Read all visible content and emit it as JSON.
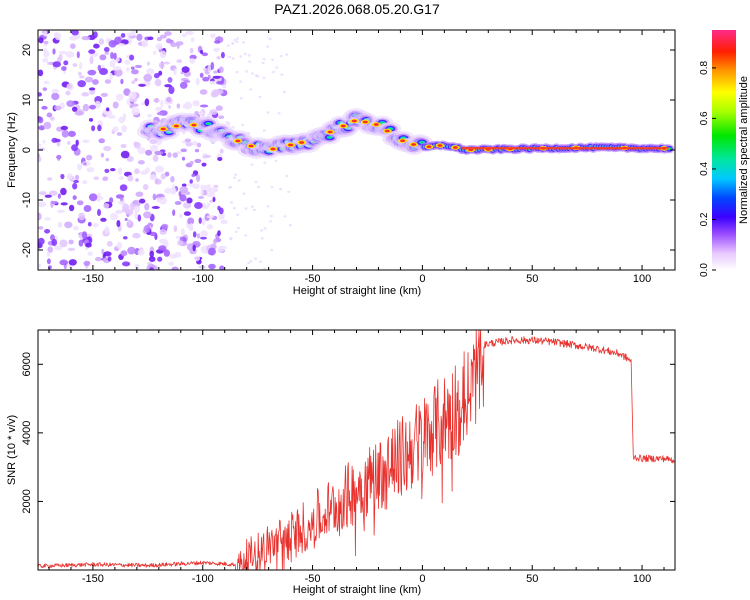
{
  "title": "PAZ1.2026.068.05.20.G17",
  "chart_data": [
    {
      "type": "heatmap",
      "xlabel": "Height of straight line (km)",
      "ylabel": "Frequency (Hz)",
      "xlim": [
        -175,
        115
      ],
      "ylim": [
        -24,
        24
      ],
      "xticks": [
        -150,
        -100,
        -50,
        0,
        50,
        100
      ],
      "yticks": [
        -20,
        -10,
        0,
        10,
        20
      ],
      "ridge": [
        {
          "x": -120,
          "y": 4
        },
        {
          "x": -110,
          "y": 5
        },
        {
          "x": -100,
          "y": 5
        },
        {
          "x": -90,
          "y": 3
        },
        {
          "x": -80,
          "y": 1
        },
        {
          "x": -70,
          "y": 0
        },
        {
          "x": -60,
          "y": 1
        },
        {
          "x": -50,
          "y": 2
        },
        {
          "x": -40,
          "y": 4
        },
        {
          "x": -30,
          "y": 6
        },
        {
          "x": -20,
          "y": 5
        },
        {
          "x": -10,
          "y": 2
        },
        {
          "x": 0,
          "y": 0.5
        },
        {
          "x": 10,
          "y": 1
        },
        {
          "x": 20,
          "y": 0
        },
        {
          "x": 50,
          "y": 0.3
        },
        {
          "x": 80,
          "y": 0.5
        },
        {
          "x": 110,
          "y": 0.3
        }
      ],
      "colorbar": {
        "label": "Normalized spectral amplitude",
        "range": [
          0,
          0.95
        ],
        "ticks": [
          0.0,
          0.2,
          0.4,
          0.6,
          0.8
        ],
        "tick_labels": [
          "0.0",
          "0.2",
          "0.4",
          "0.6",
          "0.8"
        ]
      }
    },
    {
      "type": "line",
      "xlabel": "Height of straight line (km)",
      "ylabel": "SNR (10 * v/v)",
      "xlim": [
        -175,
        115
      ],
      "ylim": [
        0,
        7000
      ],
      "xticks": [
        -150,
        -100,
        -50,
        0,
        50,
        100
      ],
      "yticks": [
        2000,
        4000,
        6000
      ],
      "color": "#e8312d",
      "series": [
        {
          "name": "SNR",
          "x": [
            -175,
            -150,
            -125,
            -100,
            -85,
            -80,
            -70,
            -60,
            -50,
            -40,
            -30,
            -20,
            -10,
            0,
            10,
            20,
            25,
            30,
            40,
            50,
            60,
            70,
            80,
            90,
            95,
            96,
            100,
            110,
            115
          ],
          "y": [
            100,
            150,
            120,
            200,
            150,
            600,
            1000,
            1300,
            1800,
            2300,
            2800,
            3300,
            3800,
            4400,
            5000,
            5800,
            6500,
            6600,
            6700,
            6700,
            6650,
            6550,
            6450,
            6300,
            6100,
            3300,
            3250,
            3250,
            3200
          ]
        }
      ]
    }
  ]
}
